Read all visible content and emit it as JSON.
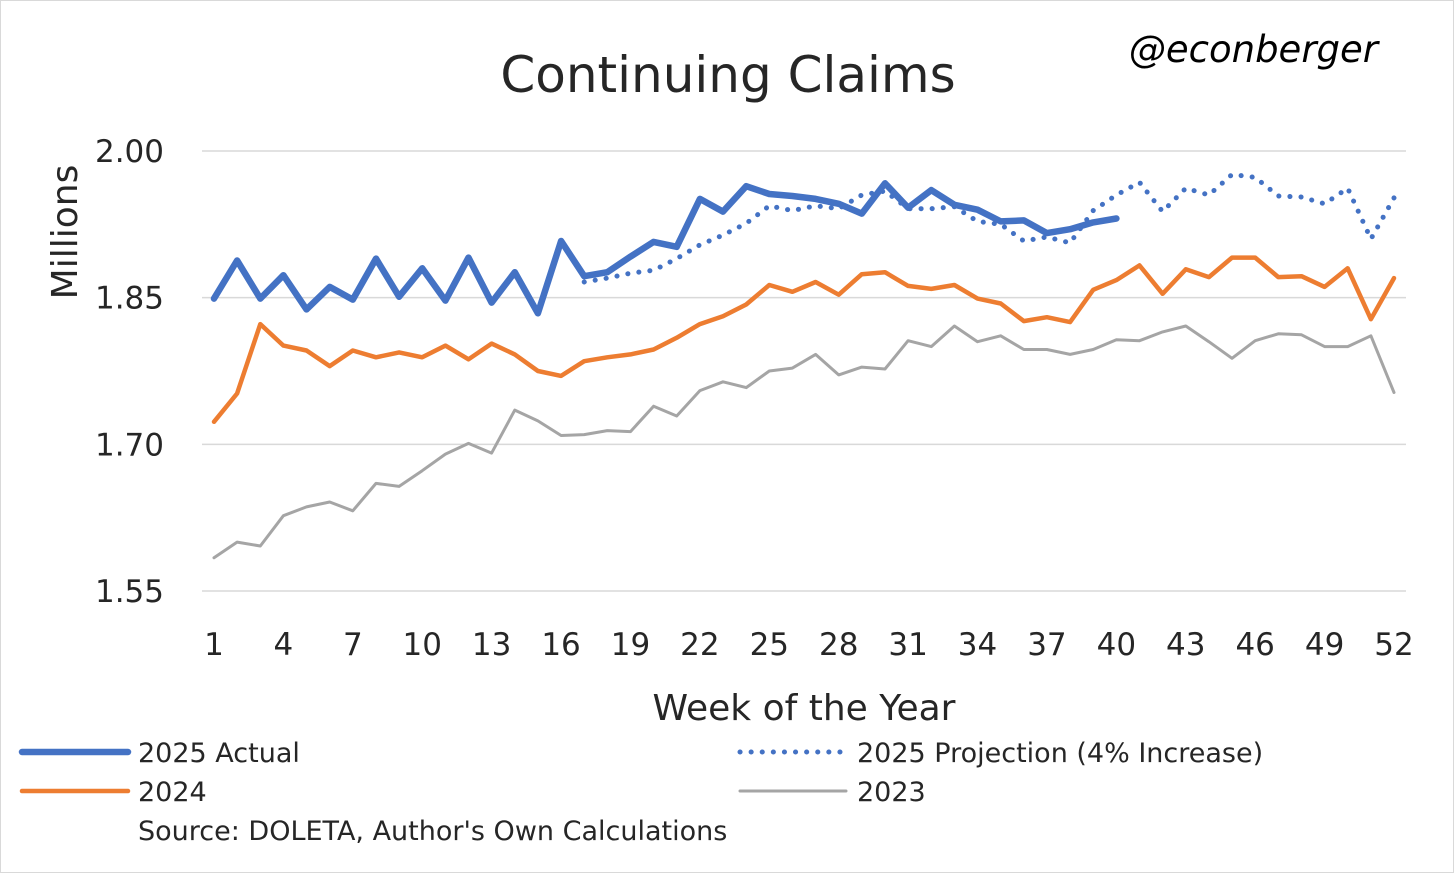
{
  "chart_data": {
    "type": "line",
    "title": "Continuing Claims",
    "handle": "@econberger",
    "xlabel": "Week of the Year",
    "ylabel": "Millions",
    "source": "Source: DOLETA, Author's Own Calculations",
    "xlim": [
      1,
      52
    ],
    "ylim": [
      1.55,
      2.0
    ],
    "x_ticks": [
      1,
      4,
      7,
      10,
      13,
      16,
      19,
      22,
      25,
      28,
      31,
      34,
      37,
      40,
      43,
      46,
      49,
      52
    ],
    "y_ticks": [
      "1.55",
      "1.70",
      "1.85",
      "2.00"
    ],
    "grid": true,
    "legend_position": "bottom",
    "series": [
      {
        "name": "2025 Actual",
        "color": "#4472c4",
        "style": "solid-thick",
        "x": [
          1,
          2,
          3,
          4,
          5,
          6,
          7,
          8,
          9,
          10,
          11,
          12,
          13,
          14,
          15,
          16,
          17,
          18,
          19,
          20,
          21,
          22,
          23,
          24,
          25,
          26,
          27,
          28,
          29,
          30,
          31,
          32,
          33,
          34,
          35,
          36,
          37,
          38,
          39,
          40
        ],
        "values": [
          1.849,
          1.888,
          1.849,
          1.873,
          1.838,
          1.861,
          1.848,
          1.89,
          1.851,
          1.88,
          1.847,
          1.891,
          1.845,
          1.876,
          1.834,
          1.908,
          1.872,
          1.876,
          1.892,
          1.907,
          1.902,
          1.951,
          1.938,
          1.964,
          1.956,
          1.954,
          1.951,
          1.946,
          1.936,
          1.967,
          1.942,
          1.96,
          1.945,
          1.94,
          1.928,
          1.929,
          1.916,
          1.92,
          1.927,
          1.931
        ]
      },
      {
        "name": "2025 Projection (4% Increase)",
        "color": "#4472c4",
        "style": "dotted",
        "x": [
          17,
          18,
          19,
          20,
          21,
          22,
          23,
          24,
          25,
          26,
          27,
          28,
          29,
          30,
          31,
          32,
          33,
          34,
          35,
          36,
          37,
          38,
          39,
          40,
          41,
          42,
          43,
          44,
          45,
          46,
          47,
          48,
          49,
          50,
          51,
          52
        ],
        "values": [
          1.866,
          1.87,
          1.875,
          1.878,
          1.89,
          1.904,
          1.914,
          1.926,
          1.944,
          1.939,
          1.944,
          1.941,
          1.955,
          1.959,
          1.941,
          1.941,
          1.943,
          1.928,
          1.925,
          1.908,
          1.912,
          1.906,
          1.939,
          1.955,
          1.968,
          1.938,
          1.962,
          1.955,
          1.976,
          1.973,
          1.954,
          1.953,
          1.946,
          1.962,
          1.91,
          1.952
        ]
      },
      {
        "name": "2024",
        "color": "#ed7d31",
        "style": "solid",
        "x": [
          1,
          2,
          3,
          4,
          5,
          6,
          7,
          8,
          9,
          10,
          11,
          12,
          13,
          14,
          15,
          16,
          17,
          18,
          19,
          20,
          21,
          22,
          23,
          24,
          25,
          26,
          27,
          28,
          29,
          30,
          31,
          32,
          33,
          34,
          35,
          36,
          37,
          38,
          39,
          40,
          41,
          42,
          43,
          44,
          45,
          46,
          47,
          48,
          49,
          50,
          51,
          52
        ],
        "values": [
          1.723,
          1.752,
          1.823,
          1.801,
          1.796,
          1.78,
          1.796,
          1.789,
          1.794,
          1.789,
          1.801,
          1.787,
          1.803,
          1.792,
          1.775,
          1.77,
          1.785,
          1.789,
          1.792,
          1.797,
          1.809,
          1.823,
          1.831,
          1.843,
          1.863,
          1.856,
          1.866,
          1.853,
          1.874,
          1.876,
          1.862,
          1.859,
          1.863,
          1.849,
          1.844,
          1.826,
          1.83,
          1.825,
          1.858,
          1.868,
          1.883,
          1.854,
          1.879,
          1.871,
          1.891,
          1.891,
          1.871,
          1.872,
          1.861,
          1.88,
          1.828,
          1.87
        ]
      },
      {
        "name": "2023",
        "color": "#a5a5a5",
        "style": "solid-thin",
        "x": [
          1,
          2,
          3,
          4,
          5,
          6,
          7,
          8,
          9,
          10,
          11,
          12,
          13,
          14,
          15,
          16,
          17,
          18,
          19,
          20,
          21,
          22,
          23,
          24,
          25,
          26,
          27,
          28,
          29,
          30,
          31,
          32,
          33,
          34,
          35,
          36,
          37,
          38,
          39,
          40,
          41,
          42,
          43,
          44,
          45,
          46,
          47,
          48,
          49,
          50,
          51,
          52
        ],
        "values": [
          1.584,
          1.6,
          1.596,
          1.627,
          1.636,
          1.641,
          1.632,
          1.66,
          1.657,
          1.673,
          1.69,
          1.701,
          1.691,
          1.735,
          1.724,
          1.709,
          1.71,
          1.714,
          1.713,
          1.739,
          1.729,
          1.755,
          1.764,
          1.758,
          1.775,
          1.778,
          1.792,
          1.771,
          1.779,
          1.777,
          1.806,
          1.8,
          1.821,
          1.805,
          1.811,
          1.797,
          1.797,
          1.792,
          1.797,
          1.807,
          1.806,
          1.815,
          1.821,
          1.805,
          1.788,
          1.806,
          1.813,
          1.812,
          1.8,
          1.8,
          1.811,
          1.753
        ]
      }
    ]
  }
}
